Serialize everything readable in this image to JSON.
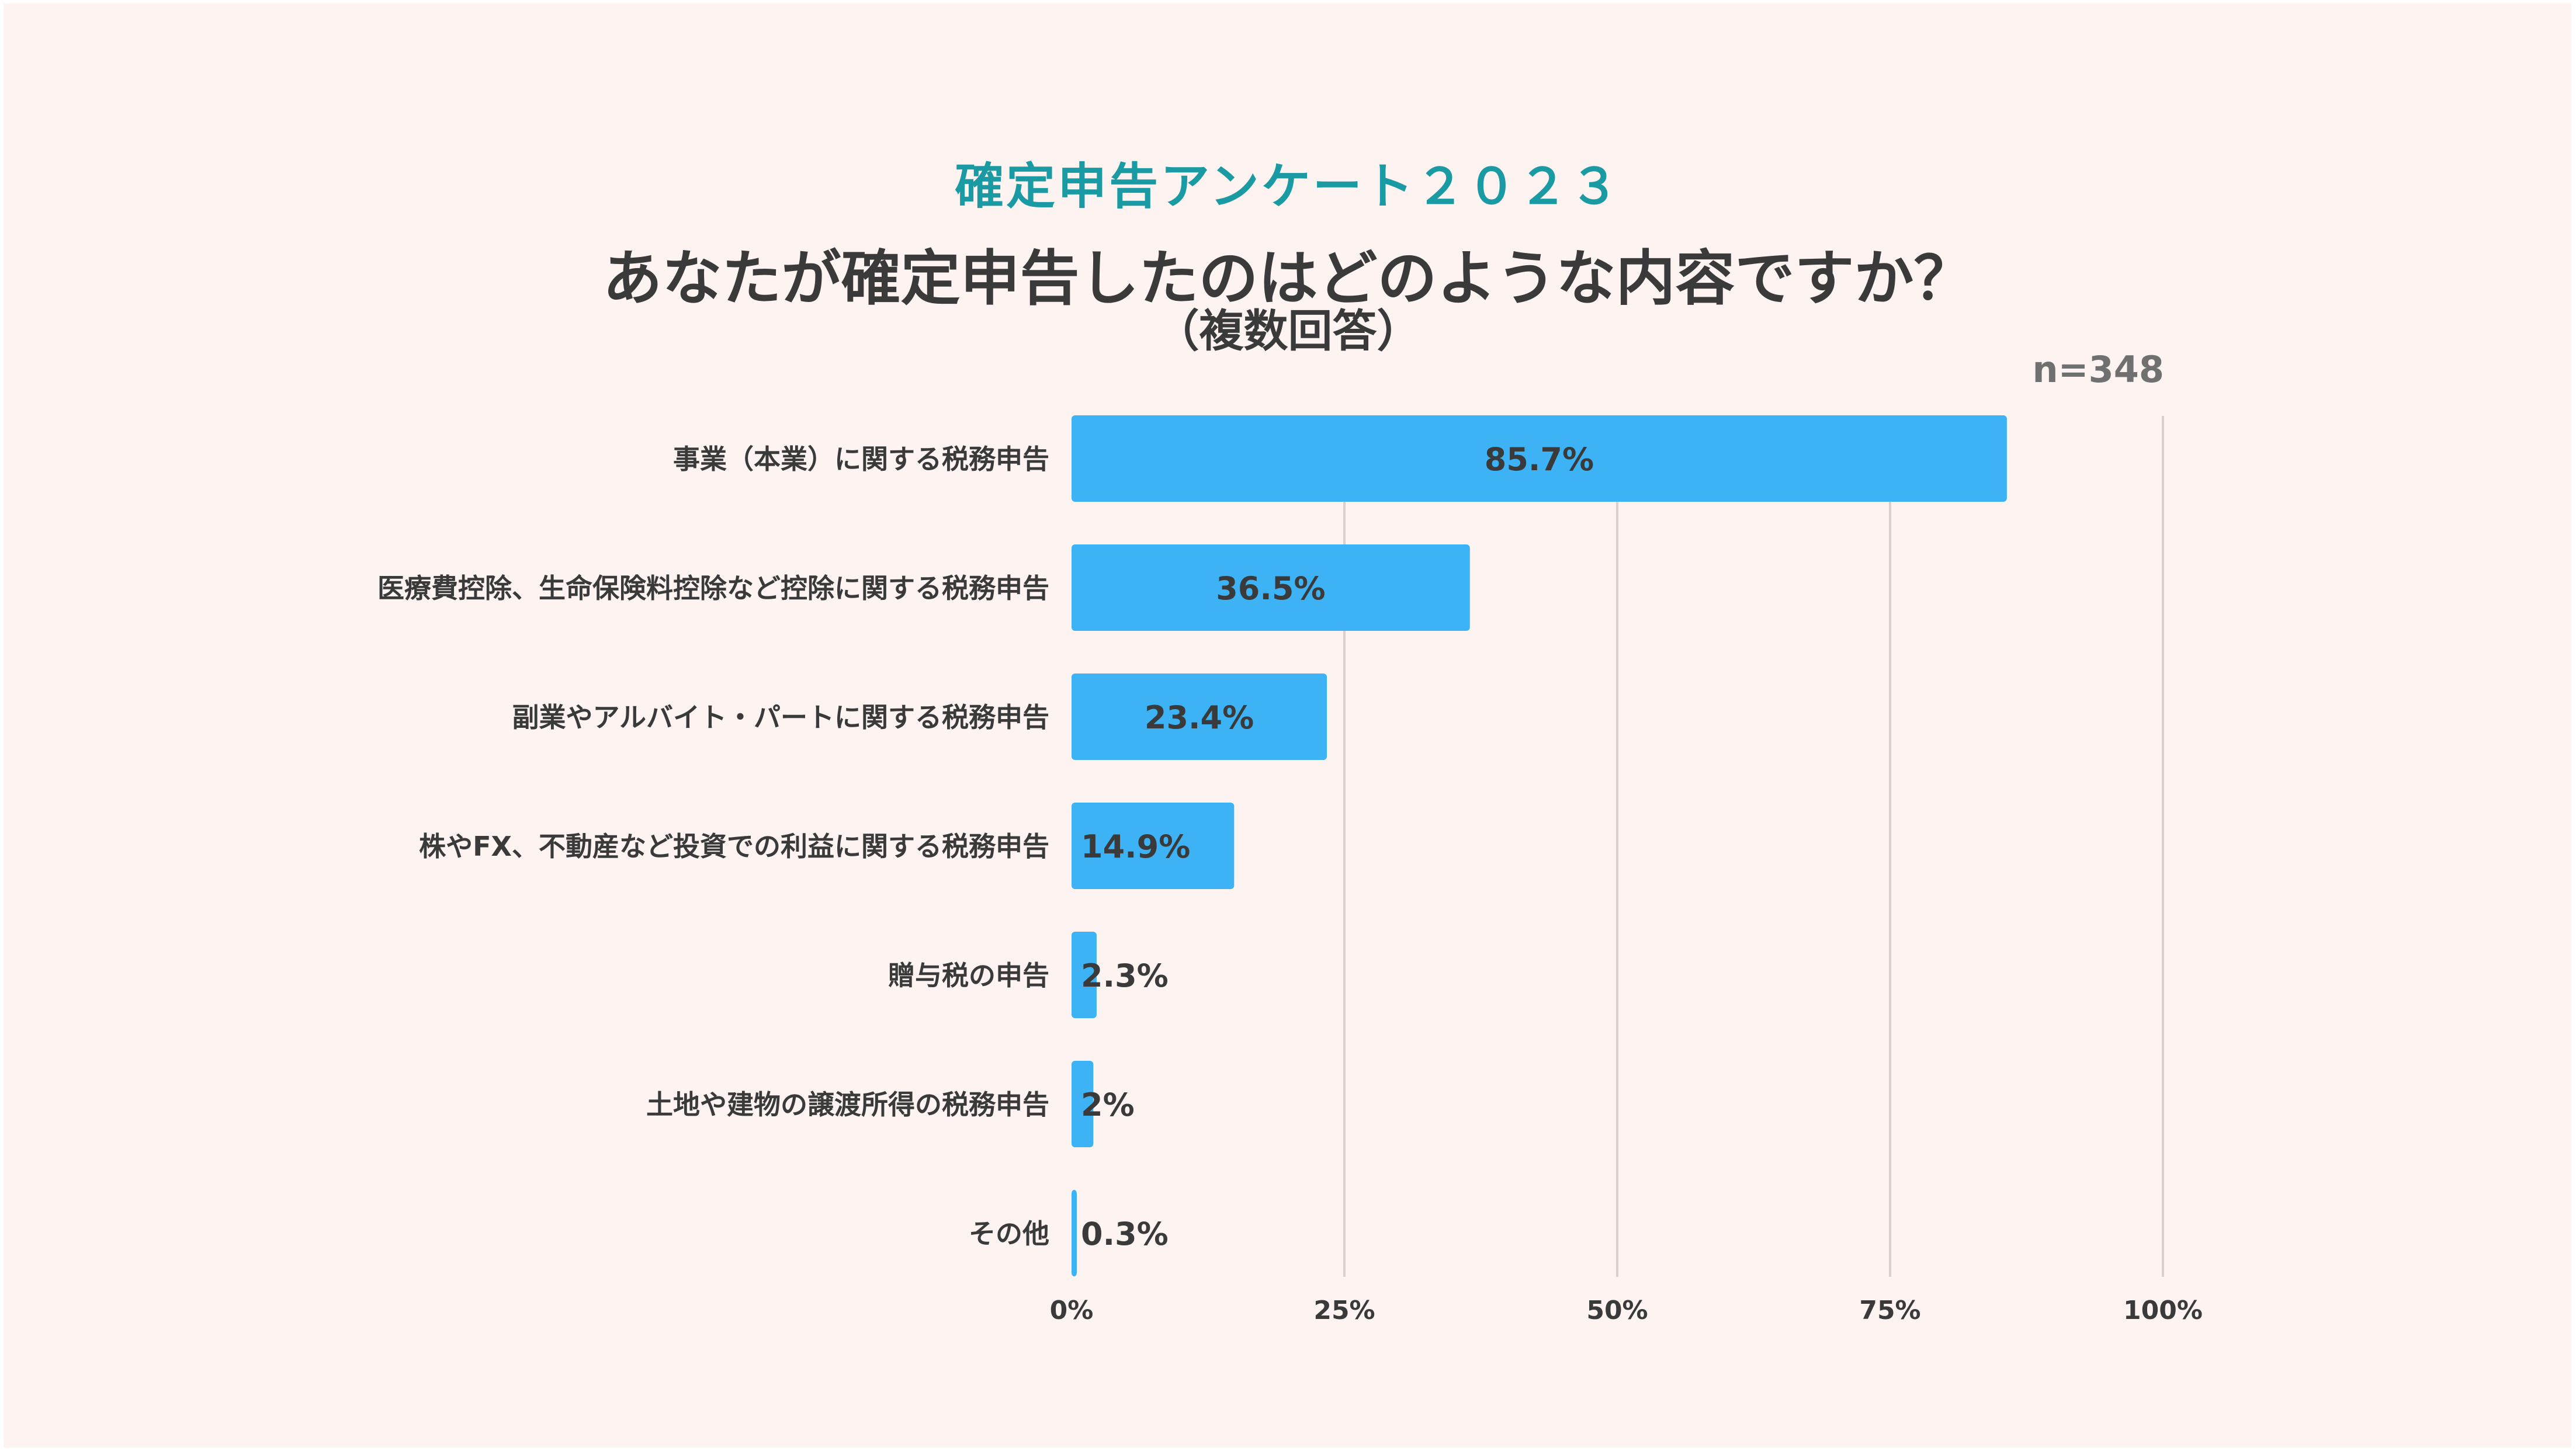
{
  "header": {
    "subtitle": "確定申告アンケート２０２３",
    "title": "あなたが確定申告したのはどのような内容ですか？",
    "note": "（複数回答）",
    "sample_size": "n=348"
  },
  "colors": {
    "background": "#fdf4f2",
    "bar": "#3db3f6",
    "subtitle": "#1a9aa3",
    "text": "#3a3a3a",
    "grid": "#dcd0cf"
  },
  "chart_data": {
    "type": "bar",
    "orientation": "horizontal",
    "categories": [
      "事業（本業）に関する税務申告",
      "医療費控除、生命保険料控除など控除に関する税務申告",
      "副業やアルバイト・パートに関する税務申告",
      "株やFX、不動産など投資での利益に関する税務申告",
      "贈与税の申告",
      "土地や建物の譲渡所得の税務申告",
      "その他"
    ],
    "values": [
      85.7,
      36.5,
      23.4,
      14.9,
      2.3,
      2,
      0.3
    ],
    "data_labels": [
      "85.7%",
      "36.5%",
      "23.4%",
      "14.9%",
      "2.3%",
      "2%",
      "0.3%"
    ],
    "xlim": [
      0,
      100
    ],
    "xticks": [
      0,
      25,
      50,
      75,
      100
    ],
    "xtick_labels": [
      "0%",
      "25%",
      "50%",
      "75%",
      "100%"
    ],
    "grid": true
  }
}
